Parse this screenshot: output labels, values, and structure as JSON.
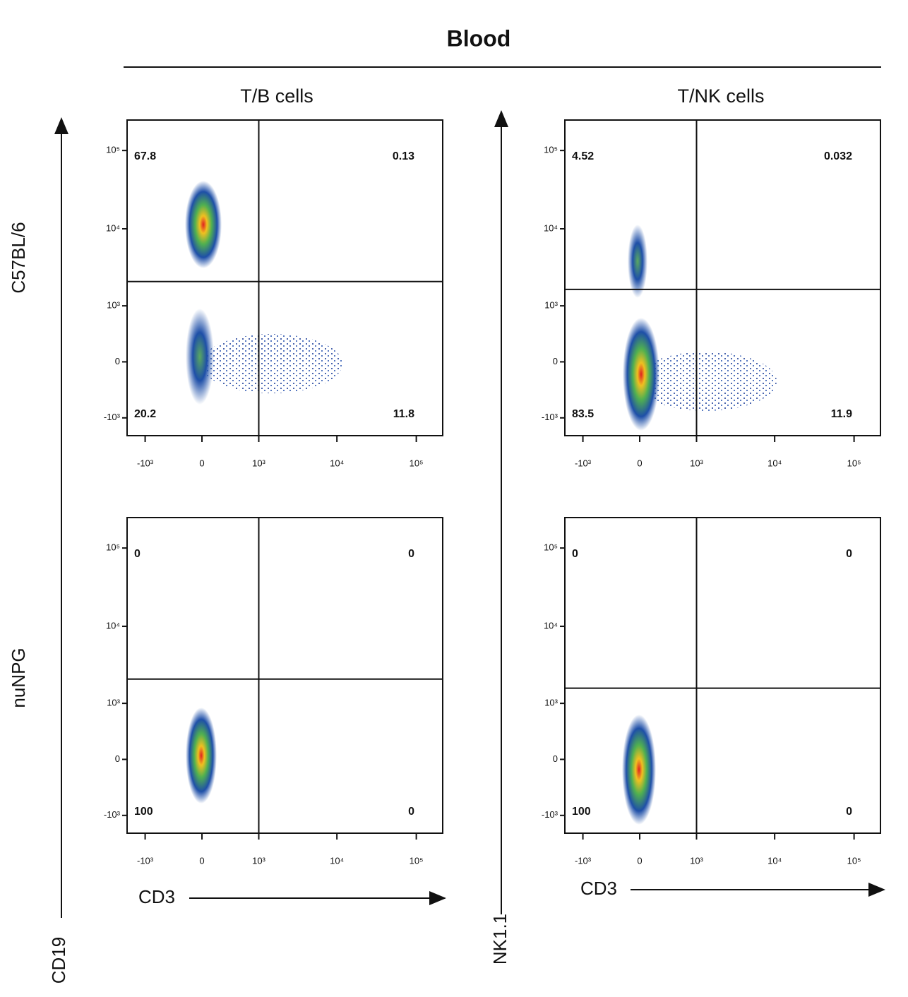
{
  "title": "Blood",
  "column_titles": [
    "T/B cells",
    "T/NK cells"
  ],
  "row_labels": [
    "C57BL/6",
    "nuNPG"
  ],
  "y_labels": [
    "CD19",
    "NK1.1"
  ],
  "x_labels": [
    "CD3",
    "CD3"
  ],
  "chart_data": [
    {
      "type": "quadrant",
      "scale": "biexponential",
      "values": [
        67.8,
        0.13,
        20.2,
        11.8
      ],
      "x_gate": 1000,
      "y_gate": 2100,
      "xlim": [
        -1730,
        215000
      ],
      "ylim": [
        -1730,
        245000
      ],
      "xticks": [
        {
          "value": -1000,
          "label": "-10³"
        },
        0,
        {
          "value": 1000,
          "label": "10³"
        },
        {
          "value": 10000,
          "label": "10⁴"
        },
        {
          "value": 100000,
          "label": "10⁵"
        }
      ],
      "yticks": [
        {
          "value": -1000,
          "label": "-10³"
        },
        0,
        {
          "value": 1000,
          "label": "10³"
        },
        {
          "value": 10000,
          "label": "10⁴"
        },
        {
          "value": 100000,
          "label": "10⁵"
        }
      ]
    },
    {
      "type": "quadrant",
      "scale": "biexponential",
      "values": [
        4.52,
        0.032,
        83.5,
        11.9
      ],
      "x_gate": 1000,
      "y_gate": 1660,
      "xlim": [
        -1730,
        215000
      ],
      "ylim": [
        -1730,
        245000
      ],
      "xticks": [
        {
          "value": -1000,
          "label": "-10³"
        },
        0,
        {
          "value": 1000,
          "label": "10³"
        },
        {
          "value": 10000,
          "label": "10⁴"
        },
        {
          "value": 100000,
          "label": "10⁵"
        }
      ],
      "yticks": [
        {
          "value": -1000,
          "label": "-10³"
        },
        0,
        {
          "value": 1000,
          "label": "10³"
        },
        {
          "value": 10000,
          "label": "10⁴"
        },
        {
          "value": 100000,
          "label": "10⁵"
        }
      ]
    },
    {
      "type": "quadrant",
      "scale": "biexponential",
      "values": [
        0,
        0,
        100,
        0
      ],
      "x_gate": 1000,
      "y_gate": 2100,
      "xlim": [
        -1730,
        215000
      ],
      "ylim": [
        -1730,
        245000
      ],
      "xticks": [
        {
          "value": -1000,
          "label": "-10³"
        },
        0,
        {
          "value": 1000,
          "label": "10³"
        },
        {
          "value": 10000,
          "label": "10⁴"
        },
        {
          "value": 100000,
          "label": "10⁵"
        }
      ],
      "yticks": [
        {
          "value": -1000,
          "label": "-10³"
        },
        0,
        {
          "value": 1000,
          "label": "10³"
        },
        {
          "value": 10000,
          "label": "10⁴"
        },
        {
          "value": 100000,
          "label": "10⁵"
        }
      ]
    },
    {
      "type": "quadrant",
      "scale": "biexponential",
      "values": [
        0,
        0,
        100,
        0
      ],
      "x_gate": 1000,
      "y_gate": 1600,
      "xlim": [
        -1730,
        215000
      ],
      "ylim": [
        -1730,
        245000
      ],
      "xticks": [
        {
          "value": -1000,
          "label": "-10³"
        },
        0,
        {
          "value": 1000,
          "label": "10³"
        },
        {
          "value": 10000,
          "label": "10⁴"
        },
        {
          "value": 100000,
          "label": "10⁵"
        }
      ],
      "yticks": [
        {
          "value": -1000,
          "label": "-10³"
        },
        0,
        {
          "value": 1000,
          "label": "10³"
        },
        {
          "value": 10000,
          "label": "10⁴"
        },
        {
          "value": 100000,
          "label": "10⁵"
        }
      ]
    }
  ]
}
